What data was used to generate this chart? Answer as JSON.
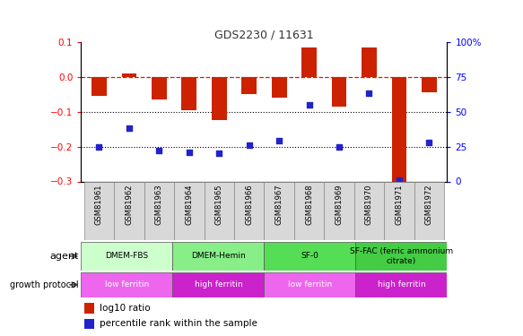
{
  "title": "GDS2230 / 11631",
  "samples": [
    "GSM81961",
    "GSM81962",
    "GSM81963",
    "GSM81964",
    "GSM81965",
    "GSM81966",
    "GSM81967",
    "GSM81968",
    "GSM81969",
    "GSM81970",
    "GSM81971",
    "GSM81972"
  ],
  "log10_ratio": [
    -0.055,
    0.01,
    -0.065,
    -0.095,
    -0.125,
    -0.05,
    -0.06,
    0.085,
    -0.085,
    0.085,
    -0.31,
    -0.045
  ],
  "percentile_rank": [
    25,
    38,
    22,
    21,
    20,
    26,
    29,
    55,
    25,
    63,
    1,
    28
  ],
  "ylim_left": [
    -0.3,
    0.1
  ],
  "ylim_right": [
    0,
    100
  ],
  "yticks_left": [
    -0.3,
    -0.2,
    -0.1,
    0.0,
    0.1
  ],
  "yticks_right": [
    0,
    25,
    50,
    75,
    100
  ],
  "hlines": [
    -0.2,
    -0.1
  ],
  "agent_groups": [
    {
      "label": "DMEM-FBS",
      "start": 0,
      "end": 3,
      "color": "#ccffcc"
    },
    {
      "label": "DMEM-Hemin",
      "start": 3,
      "end": 6,
      "color": "#88ee88"
    },
    {
      "label": "SF-0",
      "start": 6,
      "end": 9,
      "color": "#55dd55"
    },
    {
      "label": "SF-FAC (ferric ammonium\ncitrate)",
      "start": 9,
      "end": 12,
      "color": "#44cc44"
    }
  ],
  "protocol_groups": [
    {
      "label": "low ferritin",
      "start": 0,
      "end": 3,
      "color": "#ee66ee"
    },
    {
      "label": "high ferritin",
      "start": 3,
      "end": 6,
      "color": "#cc22cc"
    },
    {
      "label": "low ferritin",
      "start": 6,
      "end": 9,
      "color": "#ee66ee"
    },
    {
      "label": "high ferritin",
      "start": 9,
      "end": 12,
      "color": "#cc22cc"
    }
  ],
  "bar_color": "#cc2200",
  "dot_color": "#2222cc",
  "dashed_line_color": "#cc2200",
  "dotted_line_color": "#000000",
  "bar_width": 0.5,
  "legend_items": [
    {
      "label": "log10 ratio",
      "color": "#cc2200"
    },
    {
      "label": "percentile rank within the sample",
      "color": "#2222cc"
    }
  ]
}
